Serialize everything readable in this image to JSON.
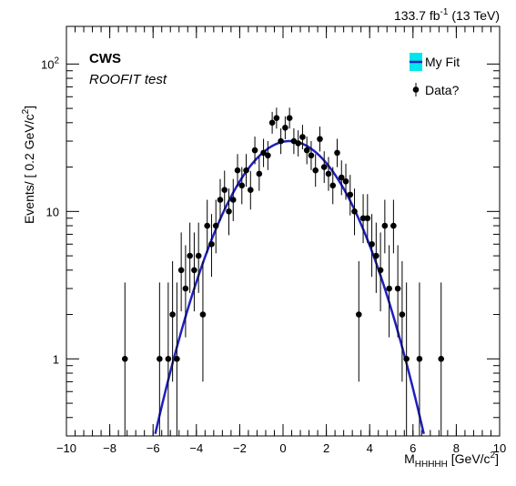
{
  "chart_data": {
    "type": "scatter",
    "title": "",
    "xlabel": "M_HHHHH [GeV/c^2]",
    "ylabel": "Events/ [ 0.2 GeV/c^2]",
    "xlim": [
      -10,
      10
    ],
    "ylim": [
      0.3,
      180
    ],
    "y_scale": "log",
    "x_tick_labels": [
      "-10",
      "-8",
      "-6",
      "-4",
      "-2",
      "0",
      "2",
      "4",
      "6",
      "8",
      "10"
    ],
    "y_tick_labels": [
      "1",
      "10",
      "10^2"
    ],
    "grid": false,
    "legend_position": "top-right",
    "annotations": {
      "lumi": "133.7 fb-1 (13 TeV)",
      "experiment": "CWS",
      "subtitle": "ROOFIT test"
    },
    "series": [
      {
        "name": "Data?",
        "kind": "points",
        "color": "#000000",
        "x": [
          -7.3,
          -5.7,
          -5.3,
          -5.1,
          -4.9,
          -4.7,
          -4.5,
          -4.3,
          -4.1,
          -3.9,
          -3.7,
          -3.5,
          -3.3,
          -3.1,
          -2.9,
          -2.7,
          -2.5,
          -2.3,
          -2.1,
          -1.9,
          -1.7,
          -1.5,
          -1.3,
          -1.1,
          -0.9,
          -0.7,
          -0.5,
          -0.3,
          -0.1,
          0.1,
          0.3,
          0.5,
          0.7,
          0.9,
          1.1,
          1.3,
          1.5,
          1.7,
          1.9,
          2.1,
          2.3,
          2.5,
          2.7,
          2.9,
          3.1,
          3.3,
          3.5,
          3.7,
          3.9,
          4.1,
          4.3,
          4.5,
          4.7,
          4.9,
          5.1,
          5.3,
          5.5,
          5.7,
          6.3,
          7.3
        ],
        "y": [
          1,
          1,
          1,
          2,
          1,
          4,
          3,
          5,
          4,
          5,
          2,
          8,
          6,
          8,
          12,
          14,
          10,
          12,
          19,
          15,
          19,
          14,
          26,
          18,
          25,
          24,
          40,
          43,
          30,
          37,
          43,
          30,
          29,
          32,
          26,
          24,
          19,
          31,
          20,
          18,
          15,
          25,
          17,
          16,
          13,
          10,
          2,
          9,
          9,
          6,
          5,
          4,
          8,
          3,
          8,
          3,
          2,
          1,
          1,
          1
        ],
        "err_up": [
          2.3,
          2.3,
          2.3,
          2.6,
          2.3,
          3.2,
          2.9,
          3.4,
          3.2,
          3.4,
          2.6,
          4.0,
          3.6,
          4.0,
          4.6,
          4.9,
          4.3,
          4.6,
          5.5,
          5.0,
          5.5,
          4.8,
          6.2,
          5.4,
          6.1,
          6.0,
          7.4,
          7.6,
          6.6,
          7.2,
          7.6,
          6.6,
          6.5,
          6.7,
          6.2,
          6.0,
          5.5,
          6.6,
          5.6,
          5.4,
          5.0,
          6.1,
          5.2,
          5.1,
          4.7,
          4.3,
          2.6,
          4.1,
          4.1,
          3.6,
          3.4,
          3.2,
          4.0,
          2.9,
          4.0,
          2.9,
          2.6,
          2.3,
          2.3,
          2.3
        ],
        "err_down": [
          0.83,
          0.83,
          0.83,
          1.3,
          0.83,
          1.9,
          1.6,
          2.2,
          1.9,
          2.2,
          1.3,
          2.8,
          2.4,
          2.8,
          3.4,
          3.7,
          3.1,
          3.4,
          4.3,
          3.8,
          4.3,
          3.7,
          5.1,
          4.2,
          5.0,
          4.9,
          6.3,
          6.5,
          5.5,
          6.1,
          6.5,
          5.5,
          5.4,
          5.6,
          5.1,
          4.9,
          4.3,
          5.5,
          4.4,
          4.2,
          3.8,
          5.0,
          4.1,
          4.0,
          3.6,
          3.1,
          1.3,
          2.9,
          2.9,
          2.4,
          2.2,
          1.9,
          2.8,
          1.6,
          2.8,
          1.6,
          1.3,
          0.83,
          0.83,
          0.83
        ]
      },
      {
        "name": "My Fit",
        "kind": "curve",
        "color": "#1f1fbf",
        "band_color": "#00e5ee",
        "model": "gaussian",
        "amplitude": 30,
        "mean": 0.3,
        "sigma": 2.05
      }
    ]
  }
}
